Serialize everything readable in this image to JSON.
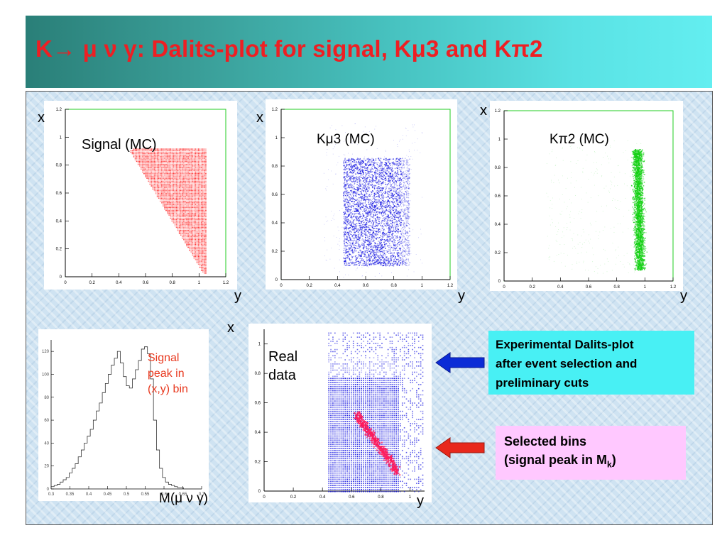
{
  "slide": {
    "title": "K→ μ ν γ: Dalits-plot for signal, Kμ3 and Kπ2",
    "colors": {
      "title_text": "#ee1f23",
      "title_bar_left": "#2a7f78",
      "title_bar_right": "#63eef0",
      "panel_bg": "#cfe3f2"
    }
  },
  "plots": {
    "signal": {
      "label": "Signal (MC)",
      "xlabel": "x",
      "ylabel": "y",
      "color": "#ff0000",
      "ticks": [
        "0",
        "0.2",
        "0.4",
        "0.6",
        "0.8",
        "1",
        "1.2"
      ]
    },
    "kmu3": {
      "label": "Kμ3 (MC)",
      "xlabel": "x",
      "ylabel": "y",
      "color": "#1010e0",
      "ticks": [
        "0",
        "0.2",
        "0.4",
        "0.6",
        "0.8",
        "1",
        "1.2"
      ]
    },
    "kpi2": {
      "label": "Kπ2 (MC)",
      "xlabel": "x",
      "ylabel": "y",
      "color": "#10d010",
      "ticks": [
        "0",
        "0.2",
        "0.4",
        "0.6",
        "0.8",
        "1",
        "1.2"
      ]
    },
    "real": {
      "label_line1": "Real",
      "label_line2": "data",
      "xlabel": "x",
      "ylabel": "y",
      "color_bg": "#0000dd",
      "color_selected": "#ff1a5a",
      "xticks": [
        "0",
        "0.2",
        "0.4",
        "0.6",
        "0.8",
        "1"
      ],
      "yticks": [
        "0",
        "0.2",
        "0.4",
        "0.6",
        "0.8",
        "1"
      ]
    },
    "hist": {
      "annotation_line1": "Signal",
      "annotation_line2": "peak in",
      "annotation_line3": "(x,y) bin",
      "xlabel": "M(μ ν γ)",
      "xticks": [
        "0.3",
        "0.35",
        "0.4",
        "0.45",
        "0.5",
        "0.55",
        "0.6",
        "0.65",
        "0.7"
      ],
      "yticks": [
        "0",
        "20",
        "40",
        "60",
        "80",
        "100",
        "120"
      ],
      "annotation_color": "#e8391f"
    }
  },
  "callouts": {
    "experimental": {
      "line1": "Experimental Dalits-plot",
      "line2": "after event selection and",
      "line3": "preliminary cuts",
      "color": "#48f0f4",
      "arrow_color": "#0b2bd6"
    },
    "selected": {
      "line1": "Selected bins",
      "line2_prefix": "(signal peak in M",
      "line2_sub": "k",
      "line2_suffix": ")",
      "color": "#ffc8ff",
      "arrow_color": "#e8281c"
    }
  }
}
